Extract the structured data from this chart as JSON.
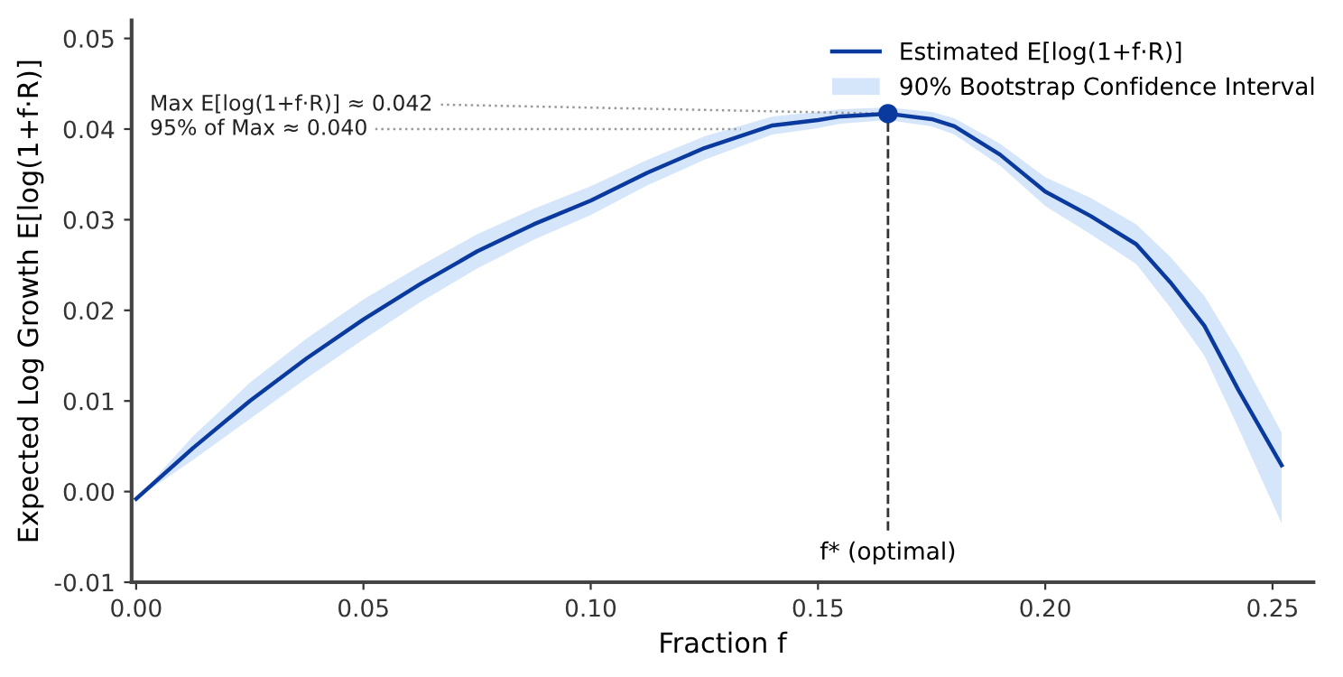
{
  "chart_data": {
    "type": "line",
    "xlabel": "Fraction f",
    "ylabel": "Expected Log Growth E[log(1+f·R)]",
    "xlim": [
      -0.001,
      0.259
    ],
    "ylim": [
      -0.01,
      0.052
    ],
    "xticks": [
      {
        "value": 0,
        "label": "0.00"
      },
      0.05,
      {
        "value": 0.1,
        "label": "0.10"
      },
      0.15,
      {
        "value": 0.2,
        "label": "0.20"
      },
      0.25
    ],
    "yticks": [
      {
        "value": -0.01,
        "label": "-0.01"
      },
      {
        "value": 0,
        "label": "0.00"
      },
      0.01,
      0.02,
      0.03,
      0.04,
      0.05
    ],
    "grid": false,
    "legend": "top right",
    "marker": "none",
    "line_style": "solid",
    "series": [
      {
        "name": "Estimated E[log(1+f·R)]",
        "color": "#0a3a9e",
        "x": [
          0,
          0.0125,
          0.025,
          0.0375,
          0.05,
          0.0625,
          0.075,
          0.0875,
          0.1,
          0.1125,
          0.125,
          0.14,
          0.15,
          0.155,
          0.1654,
          0.175,
          0.18,
          0.19,
          0.2,
          0.21,
          0.22,
          0.2275,
          0.235,
          0.2425,
          0.252
        ],
        "values": [
          -0.0008,
          0.0048,
          0.01,
          0.0147,
          0.019,
          0.0229,
          0.0265,
          0.0295,
          0.0321,
          0.0352,
          0.0379,
          0.0404,
          0.041,
          0.0414,
          0.0417,
          0.0411,
          0.0403,
          0.0372,
          0.0331,
          0.0304,
          0.0273,
          0.0231,
          0.0183,
          0.0112,
          0.0029
        ]
      },
      {
        "name": "90% Bootstrap Confidence Interval",
        "color": "#d6e6fa",
        "x": [
          0,
          0.0125,
          0.025,
          0.0375,
          0.05,
          0.0625,
          0.075,
          0.0875,
          0.1,
          0.1125,
          0.125,
          0.14,
          0.15,
          0.155,
          0.1654,
          0.175,
          0.18,
          0.19,
          0.2,
          0.21,
          0.22,
          0.2275,
          0.235,
          0.2425,
          0.252
        ],
        "values": [
          null,
          null,
          null,
          null,
          null,
          null,
          null,
          null,
          null,
          null,
          null,
          null,
          null,
          null,
          null,
          null,
          null,
          null,
          null,
          null,
          null,
          null,
          null,
          null,
          null
        ],
        "upper": [
          -0.0008,
          0.0061,
          0.012,
          0.0169,
          0.0212,
          0.0249,
          0.0284,
          0.0312,
          0.0337,
          0.0366,
          0.0392,
          0.0414,
          0.0419,
          0.0422,
          0.0424,
          0.0419,
          0.0412,
          0.0384,
          0.0347,
          0.0324,
          0.0295,
          0.0259,
          0.0216,
          0.0154,
          0.0065
        ],
        "lower": [
          -0.0008,
          0.0035,
          0.008,
          0.0125,
          0.0168,
          0.0209,
          0.0246,
          0.0278,
          0.0305,
          0.0338,
          0.0366,
          0.0394,
          0.0401,
          0.0406,
          0.041,
          0.0403,
          0.0394,
          0.036,
          0.0315,
          0.0284,
          0.0251,
          0.0203,
          0.015,
          0.007,
          -0.0035
        ]
      },
      {
        "type": "scatter",
        "color": "#0a3a9e",
        "marker": "circle",
        "x": [
          0.1654
        ],
        "values": [
          0.0417
        ]
      }
    ],
    "ref_lines": [
      {
        "axis": "x",
        "value": 0.1654,
        "label": "f* (optimal)",
        "line_style": "dashed",
        "color": "#333333"
      }
    ],
    "annotations": [
      {
        "text": "Max E[log(1+f·R)] ≈ 0.042",
        "x": 0.1654,
        "y": 0.0417
      },
      {
        "text": "95% of Max ≈ 0.040",
        "x": 0.133,
        "y": 0.04
      }
    ]
  }
}
